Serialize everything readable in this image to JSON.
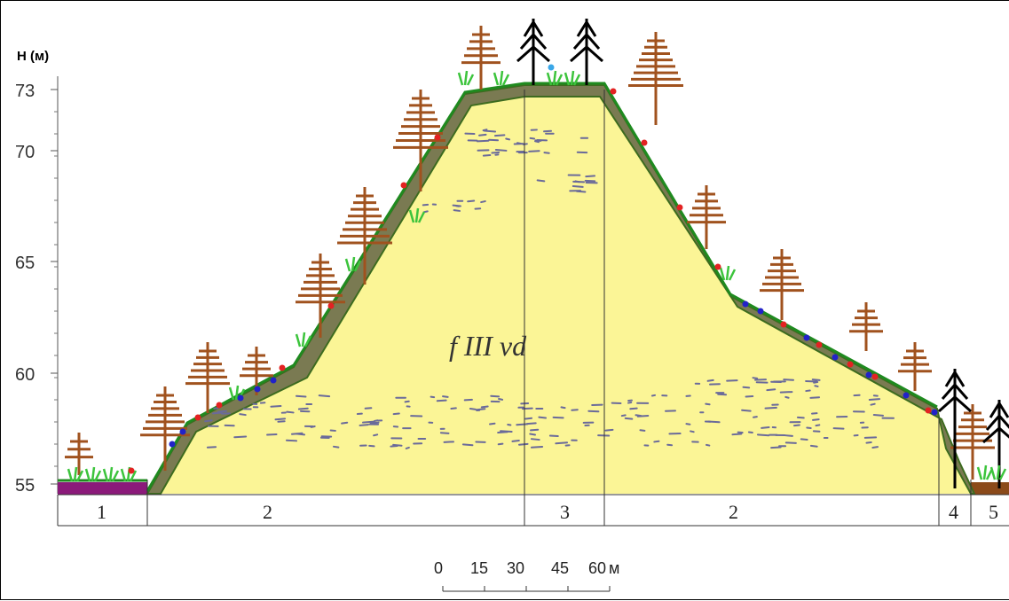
{
  "axis": {
    "unit_label": "H (м)",
    "ticks": [
      {
        "value": 55,
        "label": "55"
      },
      {
        "value": 60,
        "label": "60"
      },
      {
        "value": 65,
        "label": "65"
      },
      {
        "value": 70,
        "label": "70"
      },
      {
        "value": 73,
        "label": "73"
      }
    ]
  },
  "formation_label": "f III vd",
  "zones": [
    "1",
    "2",
    "3",
    "2",
    "4",
    "5"
  ],
  "scale": {
    "labels": [
      "0",
      "15",
      "30",
      "45",
      "60"
    ],
    "unit": "м"
  },
  "colors": {
    "sand": "#fbf596",
    "soil": "#7a7a52",
    "grass": "#1f8a1f",
    "zone1": "#8b1a7a",
    "zone5": "#8b4a1a",
    "pine": "#a0521e",
    "spruce": "#000000"
  },
  "icons": [
    "pine-tree-icon",
    "spruce-tree-icon",
    "grass-icon",
    "red-flower-icon",
    "blue-flower-icon"
  ]
}
